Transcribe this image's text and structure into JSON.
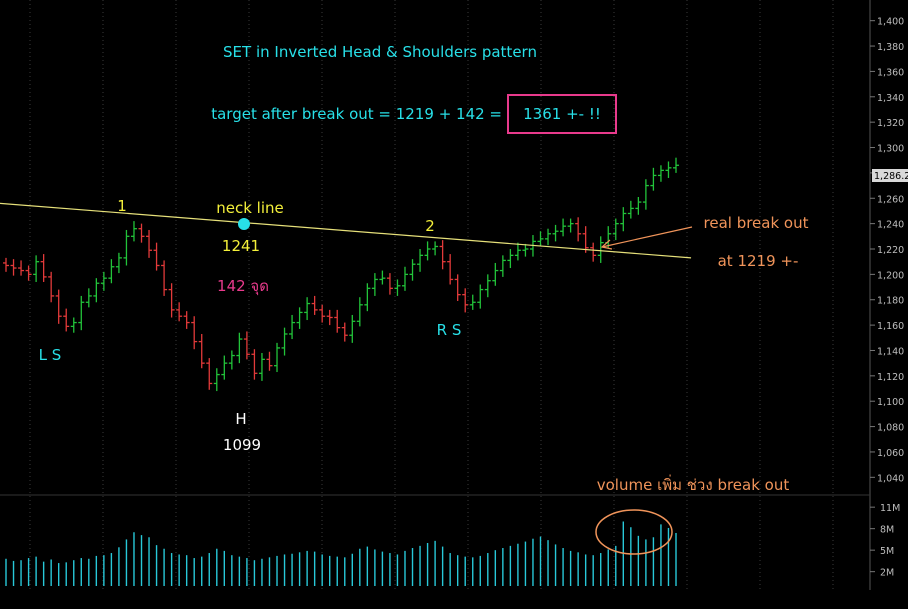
{
  "chart_data": {
    "type": "ohlc",
    "instrument": "SET",
    "annotations": {
      "title": "SET in Inverted Head & Shoulders pattern",
      "target": "target after break out =  1219 + 142 =",
      "target_box": "1361 +- !!",
      "neckline_label": "neck line",
      "neckline_value": "1241",
      "depth_label": "142 จุด",
      "label_1": "1",
      "label_2": "2",
      "left_shoulder": "L S",
      "head": "H",
      "head_value": "1099",
      "right_shoulder": "R S",
      "breakout_label": "real break out",
      "breakout_value": "at  1219 +-",
      "volume_note": "volume เพิ่ม ช่วง break out"
    },
    "price_axis": {
      "ticks": [
        "1,400",
        "1,380",
        "1,360",
        "1,340",
        "1,320",
        "1,300",
        "1,280",
        "1,260",
        "1,240",
        "1,220",
        "1,200",
        "1,180",
        "1,160",
        "1,140",
        "1,120",
        "1,100",
        "1,080",
        "1,060",
        "1,040"
      ],
      "range": [
        1030,
        1410
      ],
      "last_price": "1,286.2"
    },
    "volume_axis": {
      "ticks": [
        "11M",
        "8M",
        "5M",
        "2M"
      ]
    },
    "neckline": {
      "start": [
        0,
        1256
      ],
      "end": [
        91,
        1213
      ]
    },
    "closes": [
      1207,
      1205,
      1203,
      1200,
      1210,
      1198,
      1183,
      1167,
      1159,
      1162,
      1178,
      1183,
      1193,
      1197,
      1206,
      1213,
      1230,
      1236,
      1230,
      1219,
      1207,
      1188,
      1172,
      1167,
      1162,
      1147,
      1130,
      1114,
      1121,
      1130,
      1136,
      1149,
      1137,
      1122,
      1133,
      1128,
      1142,
      1153,
      1162,
      1170,
      1177,
      1172,
      1167,
      1166,
      1158,
      1152,
      1163,
      1176,
      1189,
      1196,
      1197,
      1189,
      1191,
      1200,
      1208,
      1215,
      1220,
      1222,
      1210,
      1196,
      1184,
      1176,
      1178,
      1188,
      1195,
      1203,
      1211,
      1215,
      1219,
      1220,
      1226,
      1228,
      1232,
      1234,
      1238,
      1240,
      1232,
      1221,
      1215,
      1225,
      1232,
      1240,
      1248,
      1252,
      1257,
      1270,
      1278,
      1282,
      1284,
      1286
    ],
    "volumes": [
      3.8,
      3.5,
      3.6,
      3.9,
      4.1,
      3.4,
      3.7,
      3.2,
      3.3,
      3.6,
      3.9,
      3.8,
      4.2,
      4.3,
      4.6,
      5.4,
      6.5,
      7.5,
      7.1,
      6.8,
      5.7,
      5.2,
      4.6,
      4.4,
      4.3,
      3.9,
      4.1,
      4.6,
      5.2,
      4.9,
      4.3,
      4.1,
      3.9,
      3.6,
      3.8,
      4.0,
      4.2,
      4.4,
      4.5,
      4.7,
      4.9,
      4.8,
      4.4,
      4.2,
      4.1,
      4.0,
      4.5,
      5.2,
      5.5,
      5.1,
      4.8,
      4.6,
      4.4,
      4.9,
      5.3,
      5.6,
      6.0,
      6.3,
      5.5,
      4.6,
      4.3,
      4.1,
      4.0,
      4.2,
      4.6,
      5.0,
      5.3,
      5.6,
      5.9,
      6.2,
      6.6,
      6.9,
      6.4,
      5.8,
      5.3,
      4.9,
      4.7,
      4.4,
      4.3,
      4.6,
      5.1,
      5.6,
      9.0,
      8.2,
      7.0,
      6.5,
      6.8,
      8.6,
      8.1,
      7.4
    ]
  }
}
